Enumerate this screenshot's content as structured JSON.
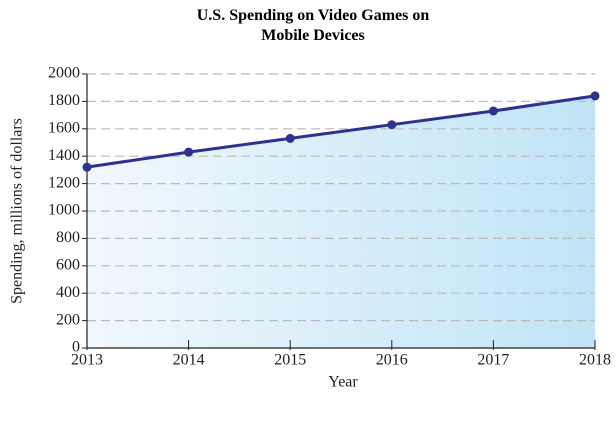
{
  "chart_data": {
    "type": "line",
    "title": "U.S. Spending on Video Games on Mobile Devices",
    "xlabel": "Year",
    "ylabel": "Spending, millions of dollars",
    "x": [
      2013,
      2014,
      2015,
      2016,
      2017,
      2018
    ],
    "series": [
      {
        "name": "Spending",
        "color": "#2e3192",
        "values": [
          1320,
          1430,
          1530,
          1630,
          1730,
          1840
        ]
      }
    ],
    "xlim": [
      2013,
      2018
    ],
    "xticks": [
      2013,
      2014,
      2015,
      2016,
      2017,
      2018
    ],
    "ylim": [
      0,
      2000
    ],
    "yticks": [
      0,
      200,
      400,
      600,
      800,
      1000,
      1200,
      1400,
      1600,
      1800,
      2000
    ],
    "grid": true,
    "area_fill": true
  }
}
